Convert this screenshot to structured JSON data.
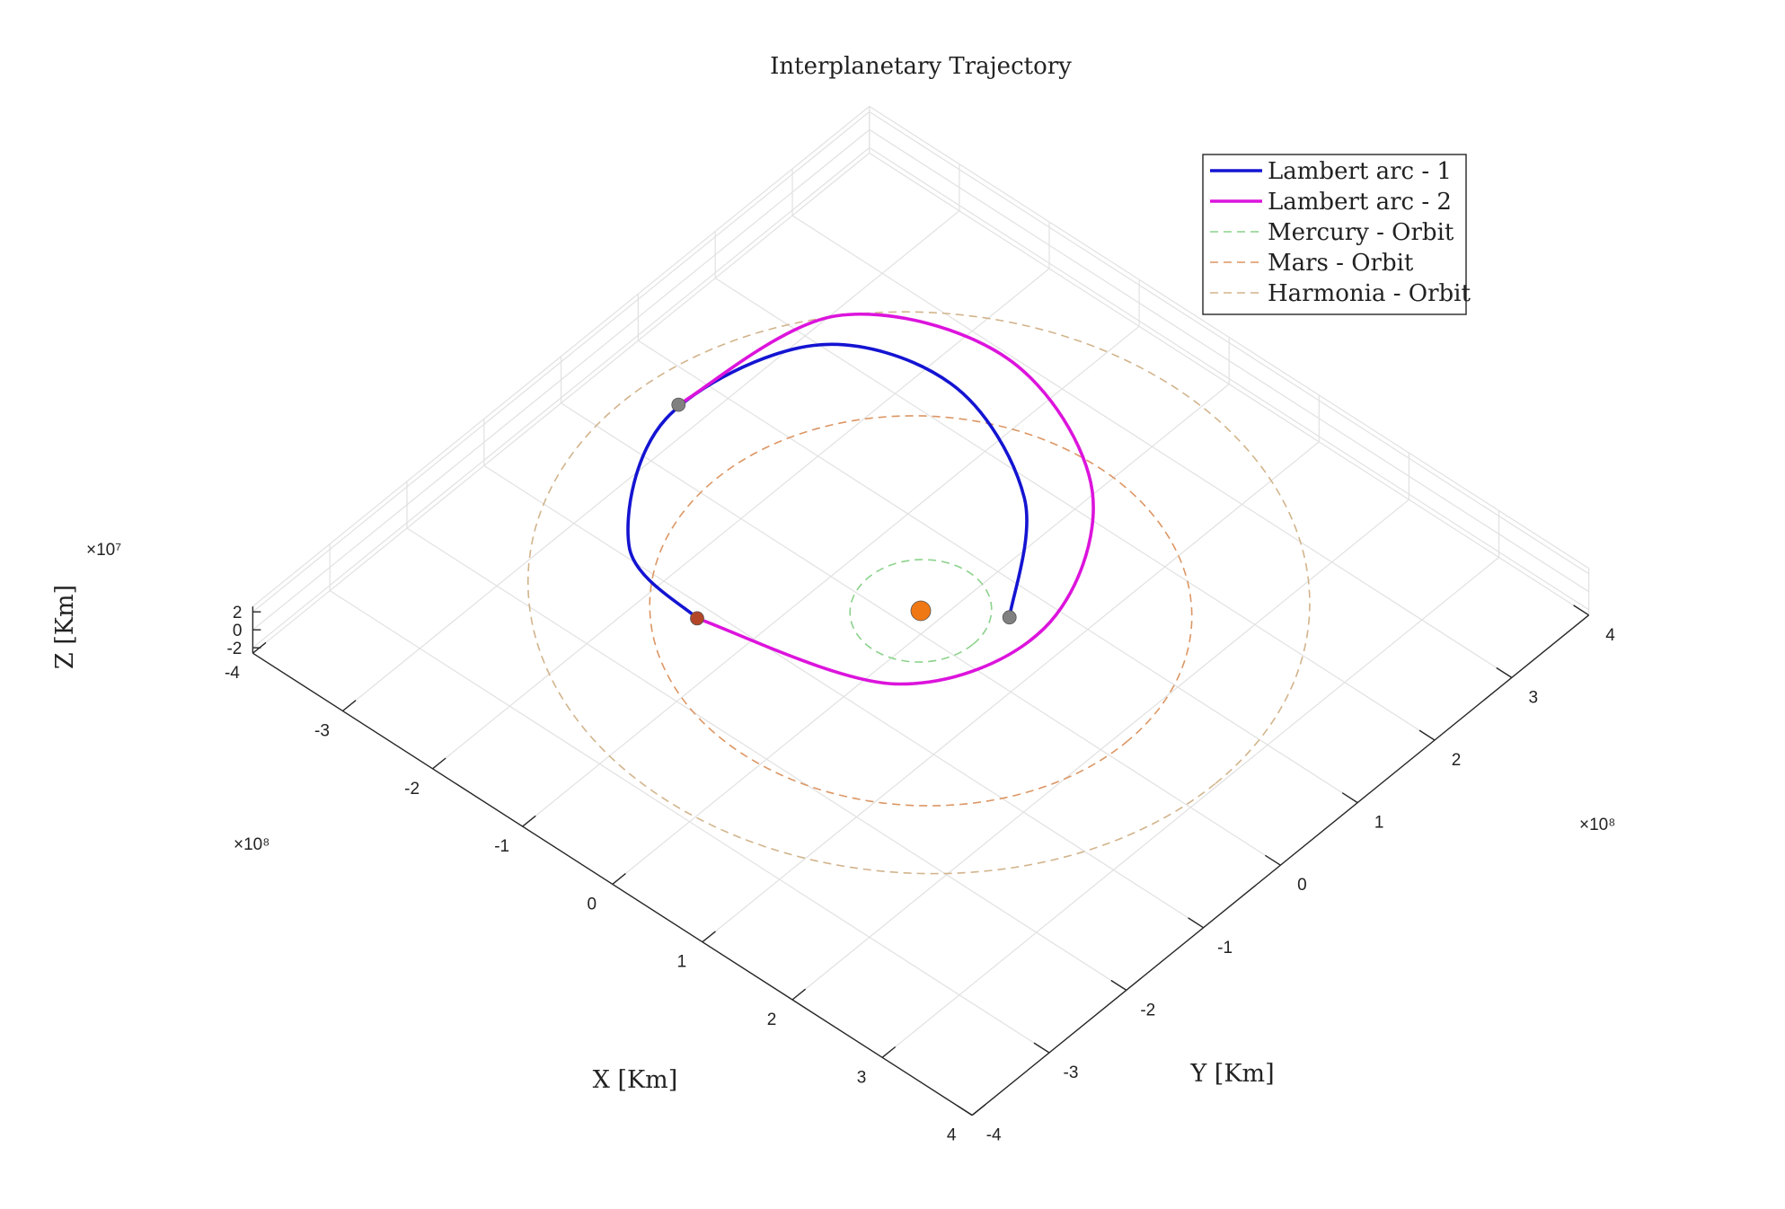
{
  "chart_data": {
    "type": "line3d",
    "title": "Interplanetary Trajectory",
    "xlabel": "X [Km]",
    "ylabel": "Y [Km]",
    "zlabel": "Z [Km]",
    "x_exponent_label": "×10⁸",
    "y_exponent_label": "×10⁸",
    "z_exponent_label": "×10⁷",
    "xlim": [
      -4,
      4
    ],
    "ylim": [
      -4,
      4
    ],
    "zlim": [
      -2.6,
      2.6
    ],
    "x_ticks": [
      -4,
      -3,
      -2,
      -1,
      0,
      1,
      2,
      3,
      4
    ],
    "y_ticks": [
      -4,
      -3,
      -2,
      -1,
      0,
      1,
      2,
      3,
      4
    ],
    "z_ticks": [
      -2,
      0,
      2
    ],
    "x_tick_labels": [
      "-4",
      "-3",
      "-2",
      "-1",
      "0",
      "1",
      "2",
      "3",
      "4"
    ],
    "y_tick_labels": [
      "-4",
      "-3",
      "-2",
      "-1",
      "0",
      "1",
      "2",
      "3",
      "4"
    ],
    "z_tick_labels": [
      "-2",
      "0",
      "2"
    ],
    "grid": true,
    "legend_position": "top-right",
    "series": [
      {
        "name": "Lambert arc - 1",
        "style": "solid",
        "color": "#1414d2",
        "points": [
          [
            0.6,
            0.45
          ],
          [
            -0.22,
            1.6
          ],
          [
            -1.55,
            2.2
          ],
          [
            -2.7,
            1.75
          ],
          [
            -3.05,
            0.25
          ],
          [
            -2.3,
            -1.1
          ],
          [
            -1.33,
            -1.35
          ]
        ]
      },
      {
        "name": "Lambert arc - 2",
        "style": "solid",
        "color": "#dc14dc",
        "points": [
          [
            -1.33,
            -1.35
          ],
          [
            0.4,
            -0.8
          ],
          [
            0.9,
            0.55
          ],
          [
            0.15,
            2.05
          ],
          [
            -1.4,
            2.75
          ],
          [
            -2.78,
            2.15
          ],
          [
            -3.08,
            0.45
          ]
        ]
      },
      {
        "name": "Mercury - Orbit",
        "style": "dashed",
        "color": "#8cd28c",
        "orbit": {
          "semi_axis_x": 0.58,
          "semi_axis_y": 0.62,
          "center": [
            0,
            0
          ]
        }
      },
      {
        "name": "Mars - Orbit",
        "style": "dashed",
        "color": "#dc9664",
        "orbit": {
          "semi_axis_x": 2.28,
          "semi_axis_y": 2.3,
          "center": [
            0,
            0
          ]
        }
      },
      {
        "name": "Harmonia - Orbit",
        "style": "dashed",
        "color": "#d2b48c",
        "orbit": {
          "semi_axis_x": 3.3,
          "semi_axis_y": 3.3,
          "center": [
            -0.15,
            0.15
          ]
        }
      }
    ],
    "bodies": [
      {
        "name": "sun",
        "x": 0,
        "y": 0,
        "color": "#f07814"
      },
      {
        "name": "mercury-departure",
        "x": 0.6,
        "y": 0.45,
        "color": "#808080"
      },
      {
        "name": "mars-flyby",
        "x": -1.33,
        "y": -1.35,
        "color": "#b44628"
      },
      {
        "name": "harmonia-arrival",
        "x": -3.08,
        "y": 0.45,
        "color": "#808080"
      }
    ]
  }
}
